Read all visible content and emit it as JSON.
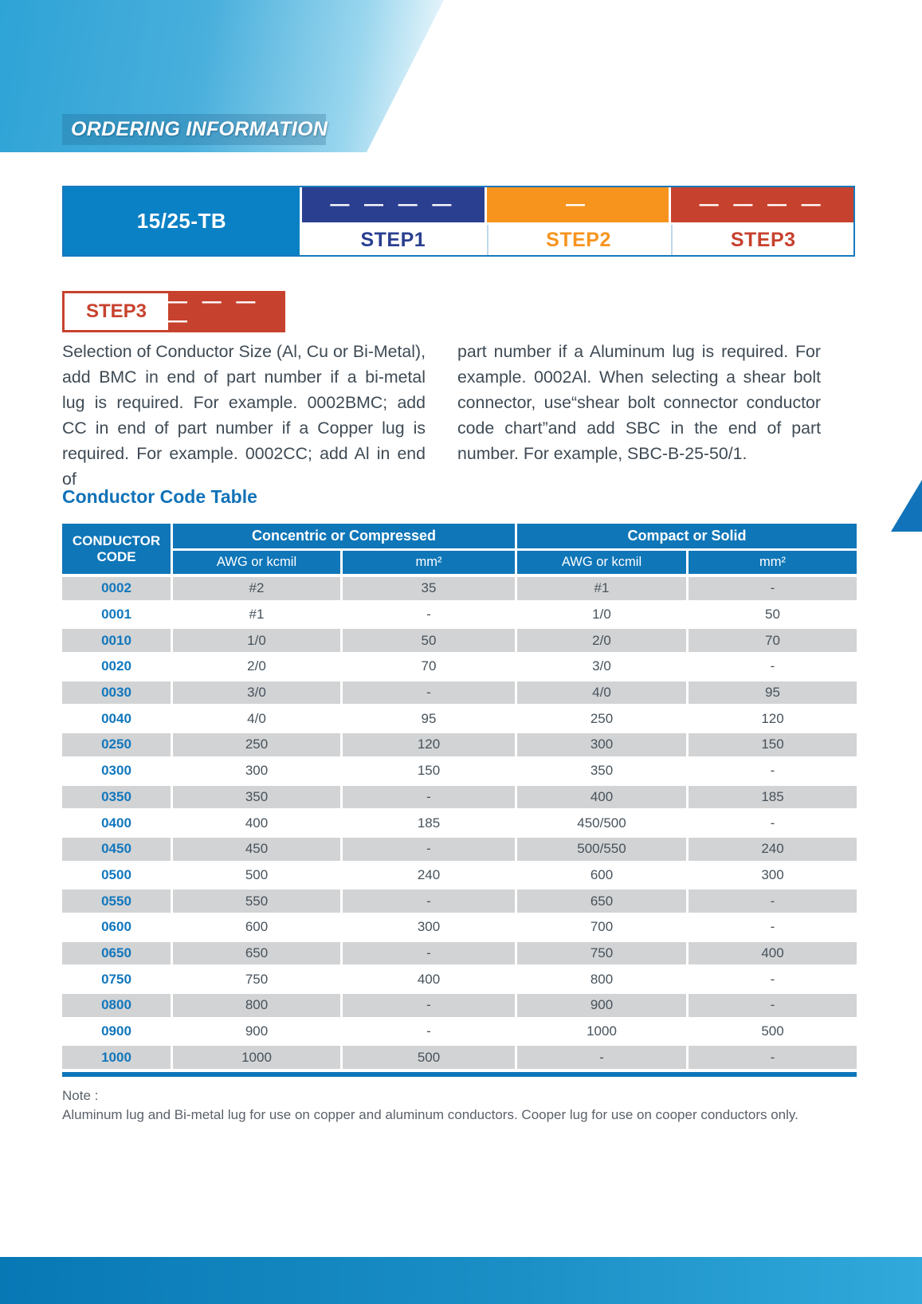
{
  "page": {
    "section_title": "ORDERING INFORMATION"
  },
  "product_bar": {
    "model": "15/25-TB",
    "steps": [
      {
        "label": "STEP1",
        "dashes": "— — — —"
      },
      {
        "label": "STEP2",
        "dashes": "—"
      },
      {
        "label": "STEP3",
        "dashes": "— — — —"
      }
    ]
  },
  "step3_box": {
    "label": "STEP3",
    "dashes": "— — — —"
  },
  "intro": {
    "left_lines": [
      "Selection of Conductor Size (Al, Cu or Bi-Metal),",
      "add BMC in end of part number if a bi-metal",
      "lug is required. For example. 0002BMC; add",
      "CC in end of part number if a Copper lug is",
      "required. For example. 0002CC; add Al in end of"
    ],
    "right_lines": [
      "part number if a Aluminum lug is required. For",
      "example. 0002Al. When selecting a shear bolt",
      "connector, use“shear bolt connector conductor",
      "code chart”and add SBC in the end of part",
      "number. For example, SBC-B-25-50/1."
    ]
  },
  "table": {
    "title": "Conductor Code Table",
    "corner_header_line1": "CONDUCTOR",
    "corner_header_line2": "CODE",
    "group_headers": [
      "Concentric or Compressed",
      "Compact or Solid"
    ],
    "sub_headers": [
      "AWG or kcmil",
      "mm²",
      "AWG or kcmil",
      "mm²"
    ],
    "rows": [
      {
        "code": "0002",
        "values": [
          "#2",
          "35",
          "#1",
          "-"
        ]
      },
      {
        "code": "0001",
        "values": [
          "#1",
          "-",
          "1/0",
          "50"
        ]
      },
      {
        "code": "0010",
        "values": [
          "1/0",
          "50",
          "2/0",
          "70"
        ]
      },
      {
        "code": "0020",
        "values": [
          "2/0",
          "70",
          "3/0",
          "-"
        ]
      },
      {
        "code": "0030",
        "values": [
          "3/0",
          "-",
          "4/0",
          "95"
        ]
      },
      {
        "code": "0040",
        "values": [
          "4/0",
          "95",
          "250",
          "120"
        ]
      },
      {
        "code": "0250",
        "values": [
          "250",
          "120",
          "300",
          "150"
        ]
      },
      {
        "code": "0300",
        "values": [
          "300",
          "150",
          "350",
          "-"
        ]
      },
      {
        "code": "0350",
        "values": [
          "350",
          "-",
          "400",
          "185"
        ]
      },
      {
        "code": "0400",
        "values": [
          "400",
          "185",
          "450/500",
          "-"
        ]
      },
      {
        "code": "0450",
        "values": [
          "450",
          "-",
          "500/550",
          "240"
        ]
      },
      {
        "code": "0500",
        "values": [
          "500",
          "240",
          "600",
          "300"
        ]
      },
      {
        "code": "0550",
        "values": [
          "550",
          "-",
          "650",
          "-"
        ]
      },
      {
        "code": "0600",
        "values": [
          "600",
          "300",
          "700",
          "-"
        ]
      },
      {
        "code": "0650",
        "values": [
          "650",
          "-",
          "750",
          "400"
        ]
      },
      {
        "code": "0750",
        "values": [
          "750",
          "400",
          "800",
          "-"
        ]
      },
      {
        "code": "0800",
        "values": [
          "800",
          "-",
          "900",
          "-"
        ]
      },
      {
        "code": "0900",
        "values": [
          "900",
          "-",
          "1000",
          "500"
        ]
      },
      {
        "code": "1000",
        "values": [
          "1000",
          "500",
          "-",
          "-"
        ]
      }
    ]
  },
  "note": {
    "label": "Note :",
    "text": "Aluminum lug and Bi-metal lug for use on copper and aluminum conductors. Cooper lug for use on cooper conductors only."
  },
  "colors": {
    "banner_blue": "#2EA3D6",
    "model_cell_blue": "#0B81C5",
    "step1_navy": "#2A3F90",
    "step2_orange": "#F7941E",
    "step3_red": "#C7422E",
    "table_header_blue": "#0F76B8",
    "row_stripe_gray": "#D2D3D4",
    "code_text_blue": "#1277BD",
    "footer_left": "#0878B5",
    "footer_right": "#31A9DA"
  }
}
